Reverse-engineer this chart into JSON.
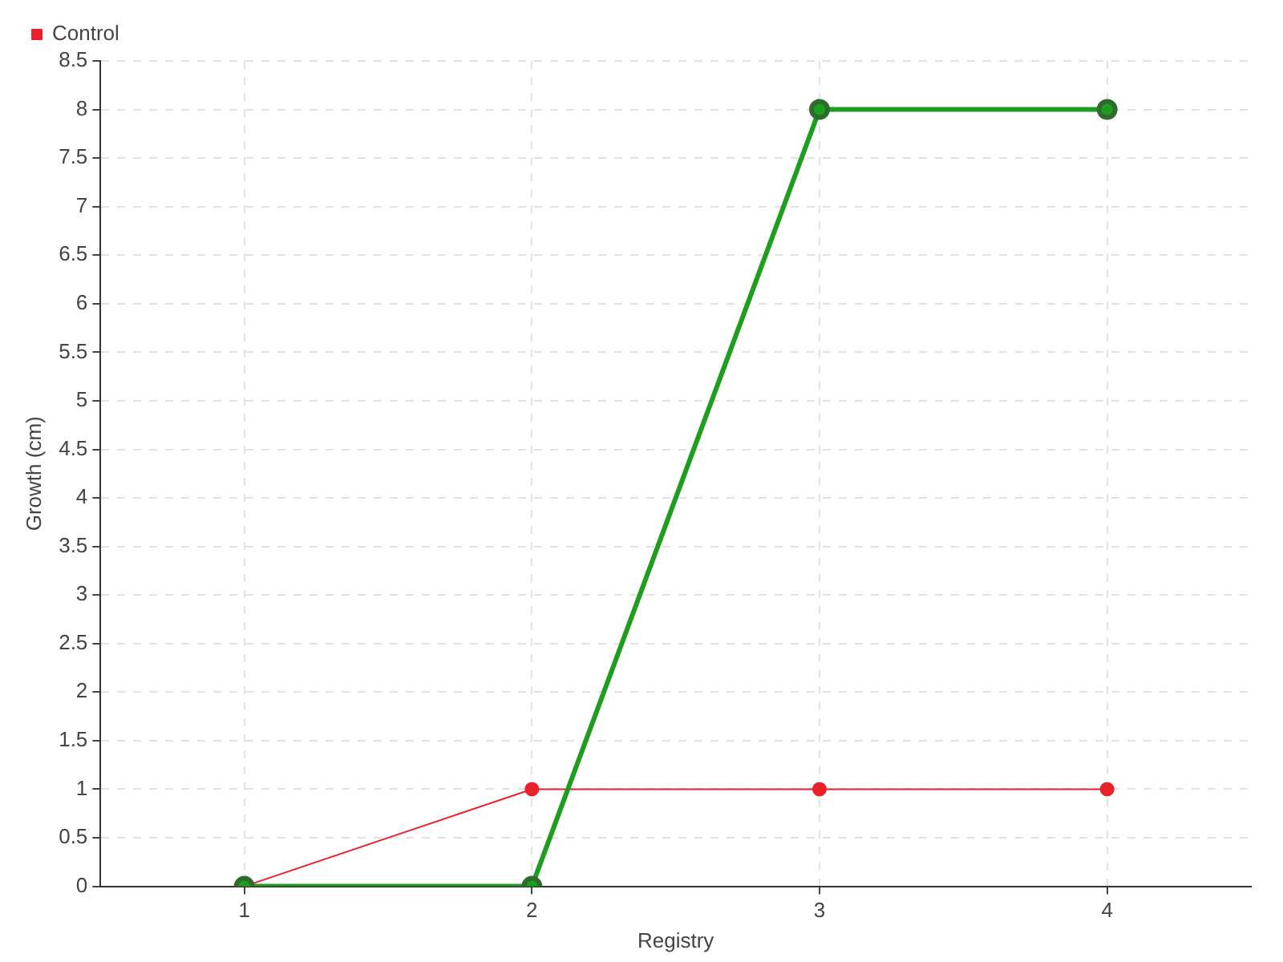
{
  "chart_data": {
    "type": "line",
    "xlabel": "Registry",
    "ylabel": "Growth (cm)",
    "x": [
      1,
      2,
      3,
      4
    ],
    "xlim": [
      0.5,
      4.5
    ],
    "xticks": [
      1,
      2,
      3,
      4
    ],
    "ylim": [
      0,
      8.5
    ],
    "yticks": [
      0,
      0.5,
      1,
      1.5,
      2,
      2.5,
      3,
      3.5,
      4,
      4.5,
      5,
      5.5,
      6,
      6.5,
      7,
      7.5,
      8,
      8.5
    ],
    "grid": true,
    "legend": "top left",
    "marker": "circle",
    "series": [
      {
        "color": "#1e9e1e",
        "values": [
          0,
          0,
          8,
          8
        ]
      },
      {
        "name": "Control",
        "color": "#e8212b",
        "values": [
          0,
          1,
          1,
          1
        ]
      }
    ]
  }
}
